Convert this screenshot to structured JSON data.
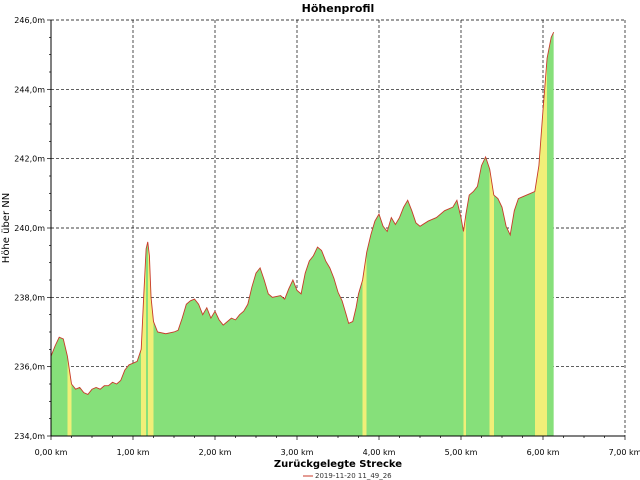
{
  "chart_data": {
    "type": "area",
    "title": "Höhenprofil",
    "xlabel": "Zurückgelegte Strecke",
    "ylabel": "Höhe über NN",
    "xlim": [
      0,
      7
    ],
    "ylim": [
      234,
      246
    ],
    "x_ticks": [
      "0,00 km",
      "1,00 km",
      "2,00 km",
      "3,00 km",
      "4,00 km",
      "5,00 km",
      "6,00 km",
      "7,00 km"
    ],
    "y_ticks": [
      "234,0m",
      "236,0m",
      "238,0m",
      "240,0m",
      "242,0m",
      "244,0m",
      "246,0m"
    ],
    "grid": true,
    "legend_position": "bottom",
    "series": [
      {
        "name": "2019-11-20 11_49_26",
        "color": "#c83a2a",
        "fill_green": "#86e07a",
        "fill_yellow": "#f0ef78",
        "points": [
          [
            0.0,
            236.3
          ],
          [
            0.05,
            236.6
          ],
          [
            0.1,
            236.85
          ],
          [
            0.15,
            236.8
          ],
          [
            0.2,
            236.3
          ],
          [
            0.25,
            235.5
          ],
          [
            0.3,
            235.35
          ],
          [
            0.35,
            235.4
          ],
          [
            0.4,
            235.25
          ],
          [
            0.45,
            235.2
          ],
          [
            0.5,
            235.35
          ],
          [
            0.55,
            235.4
          ],
          [
            0.6,
            235.35
          ],
          [
            0.65,
            235.45
          ],
          [
            0.7,
            235.45
          ],
          [
            0.75,
            235.55
          ],
          [
            0.8,
            235.5
          ],
          [
            0.85,
            235.6
          ],
          [
            0.9,
            235.9
          ],
          [
            0.95,
            236.05
          ],
          [
            1.0,
            236.1
          ],
          [
            1.05,
            236.15
          ],
          [
            1.1,
            236.5
          ],
          [
            1.13,
            238.0
          ],
          [
            1.16,
            239.4
          ],
          [
            1.18,
            239.6
          ],
          [
            1.2,
            239.2
          ],
          [
            1.22,
            238.0
          ],
          [
            1.25,
            237.3
          ],
          [
            1.3,
            237.0
          ],
          [
            1.4,
            236.95
          ],
          [
            1.5,
            237.0
          ],
          [
            1.55,
            237.05
          ],
          [
            1.6,
            237.4
          ],
          [
            1.65,
            237.8
          ],
          [
            1.7,
            237.9
          ],
          [
            1.75,
            237.95
          ],
          [
            1.8,
            237.8
          ],
          [
            1.85,
            237.5
          ],
          [
            1.9,
            237.7
          ],
          [
            1.95,
            237.4
          ],
          [
            2.0,
            237.6
          ],
          [
            2.05,
            237.35
          ],
          [
            2.1,
            237.2
          ],
          [
            2.15,
            237.3
          ],
          [
            2.2,
            237.4
          ],
          [
            2.25,
            237.35
          ],
          [
            2.3,
            237.5
          ],
          [
            2.35,
            237.6
          ],
          [
            2.4,
            237.8
          ],
          [
            2.45,
            238.3
          ],
          [
            2.5,
            238.7
          ],
          [
            2.55,
            238.85
          ],
          [
            2.6,
            238.5
          ],
          [
            2.65,
            238.1
          ],
          [
            2.7,
            238.0
          ],
          [
            2.8,
            238.05
          ],
          [
            2.85,
            237.95
          ],
          [
            2.9,
            238.25
          ],
          [
            2.95,
            238.5
          ],
          [
            3.0,
            238.2
          ],
          [
            3.05,
            238.1
          ],
          [
            3.1,
            238.7
          ],
          [
            3.15,
            239.05
          ],
          [
            3.2,
            239.2
          ],
          [
            3.25,
            239.45
          ],
          [
            3.3,
            239.35
          ],
          [
            3.35,
            239.05
          ],
          [
            3.4,
            238.85
          ],
          [
            3.45,
            238.55
          ],
          [
            3.5,
            238.15
          ],
          [
            3.55,
            237.9
          ],
          [
            3.6,
            237.5
          ],
          [
            3.63,
            237.25
          ],
          [
            3.68,
            237.3
          ],
          [
            3.72,
            237.7
          ],
          [
            3.75,
            238.1
          ],
          [
            3.8,
            238.5
          ],
          [
            3.85,
            239.3
          ],
          [
            3.9,
            239.8
          ],
          [
            3.95,
            240.2
          ],
          [
            4.0,
            240.4
          ],
          [
            4.05,
            240.05
          ],
          [
            4.1,
            239.9
          ],
          [
            4.15,
            240.3
          ],
          [
            4.2,
            240.1
          ],
          [
            4.25,
            240.3
          ],
          [
            4.3,
            240.6
          ],
          [
            4.35,
            240.8
          ],
          [
            4.4,
            240.5
          ],
          [
            4.45,
            240.15
          ],
          [
            4.5,
            240.05
          ],
          [
            4.6,
            240.2
          ],
          [
            4.7,
            240.3
          ],
          [
            4.8,
            240.5
          ],
          [
            4.9,
            240.6
          ],
          [
            4.95,
            240.8
          ],
          [
            5.0,
            240.3
          ],
          [
            5.03,
            239.9
          ],
          [
            5.06,
            240.4
          ],
          [
            5.1,
            240.95
          ],
          [
            5.15,
            241.05
          ],
          [
            5.2,
            241.2
          ],
          [
            5.25,
            241.8
          ],
          [
            5.3,
            242.05
          ],
          [
            5.35,
            241.7
          ],
          [
            5.4,
            240.95
          ],
          [
            5.45,
            240.85
          ],
          [
            5.5,
            240.6
          ],
          [
            5.55,
            240.05
          ],
          [
            5.6,
            239.8
          ],
          [
            5.65,
            240.5
          ],
          [
            5.7,
            240.85
          ],
          [
            5.75,
            240.9
          ],
          [
            5.8,
            240.95
          ],
          [
            5.85,
            241.0
          ],
          [
            5.9,
            241.05
          ],
          [
            5.95,
            241.8
          ],
          [
            6.0,
            243.4
          ],
          [
            6.05,
            244.9
          ],
          [
            6.1,
            245.5
          ],
          [
            6.13,
            245.65
          ]
        ]
      }
    ]
  }
}
